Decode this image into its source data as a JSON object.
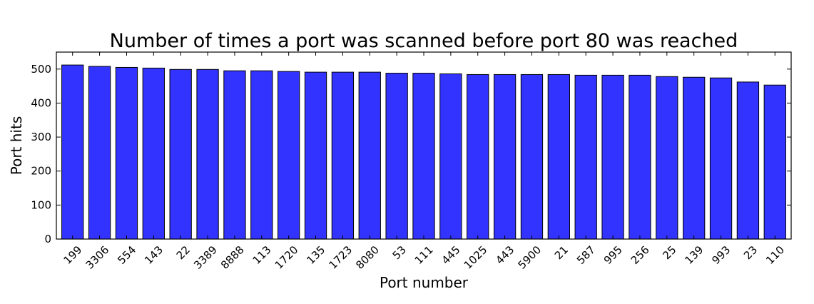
{
  "chart_data": {
    "type": "bar",
    "title": "Number of times a port was scanned before port 80 was reached",
    "xlabel": "Port number",
    "ylabel": "Port hits",
    "categories": [
      "199",
      "3306",
      "554",
      "143",
      "22",
      "3389",
      "8888",
      "113",
      "1720",
      "135",
      "1723",
      "8080",
      "53",
      "111",
      "445",
      "1025",
      "443",
      "5900",
      "21",
      "587",
      "995",
      "256",
      "25",
      "139",
      "993",
      "23",
      "110"
    ],
    "values": [
      512,
      508,
      505,
      503,
      499,
      499,
      495,
      495,
      493,
      491,
      491,
      491,
      488,
      488,
      486,
      484,
      484,
      484,
      484,
      482,
      482,
      482,
      478,
      476,
      474,
      462,
      453
    ],
    "ylim": [
      0,
      550
    ],
    "yticks": [
      0,
      100,
      200,
      300,
      400,
      500
    ],
    "bar_color": "#3333ff",
    "grid": false,
    "legend": "none"
  }
}
